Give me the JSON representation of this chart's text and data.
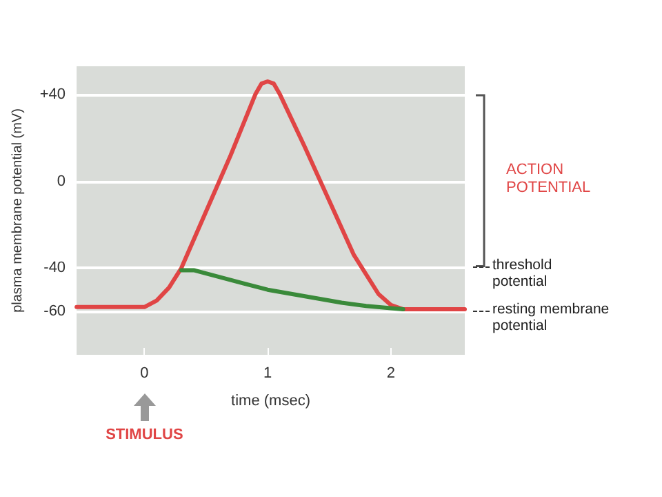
{
  "chart_data": {
    "type": "line",
    "xlabel": "time (msec)",
    "ylabel": "plasma membrane potential (mV)",
    "xlim": [
      -0.55,
      2.6
    ],
    "ylim": [
      -80,
      53
    ],
    "xticks": [
      0,
      1,
      2
    ],
    "yticks": [
      {
        "value": 40,
        "label": "+40"
      },
      0,
      -40,
      -60
    ],
    "grid": "y",
    "marker": "none",
    "line_style": "solid",
    "series": [
      {
        "color": "#e04545",
        "x": [
          -0.55,
          0,
          0.1,
          0.2,
          0.3,
          0.5,
          0.7,
          0.9,
          0.95,
          1.0,
          1.05,
          1.1,
          1.3,
          1.5,
          1.7,
          1.9,
          2.0,
          2.1,
          2.3,
          2.6
        ],
        "values": [
          -58,
          -58,
          -55,
          -49,
          -40,
          -14,
          12,
          40,
          45,
          46,
          45,
          40,
          16,
          -9,
          -34,
          -52,
          -57,
          -59,
          -59,
          -59
        ]
      },
      {
        "color": "#3a8a3a",
        "x": [
          0.3,
          0.4,
          0.6,
          0.8,
          1.0,
          1.2,
          1.4,
          1.6,
          1.8,
          2.0,
          2.1
        ],
        "values": [
          -41,
          -41,
          -44,
          -47,
          -50,
          -52,
          -54,
          -56,
          -57.5,
          -58.5,
          -59
        ]
      }
    ],
    "annotations": [
      "ACTION POTENTIAL",
      "threshold potential",
      "resting membrane potential",
      "STIMULUS"
    ]
  }
}
